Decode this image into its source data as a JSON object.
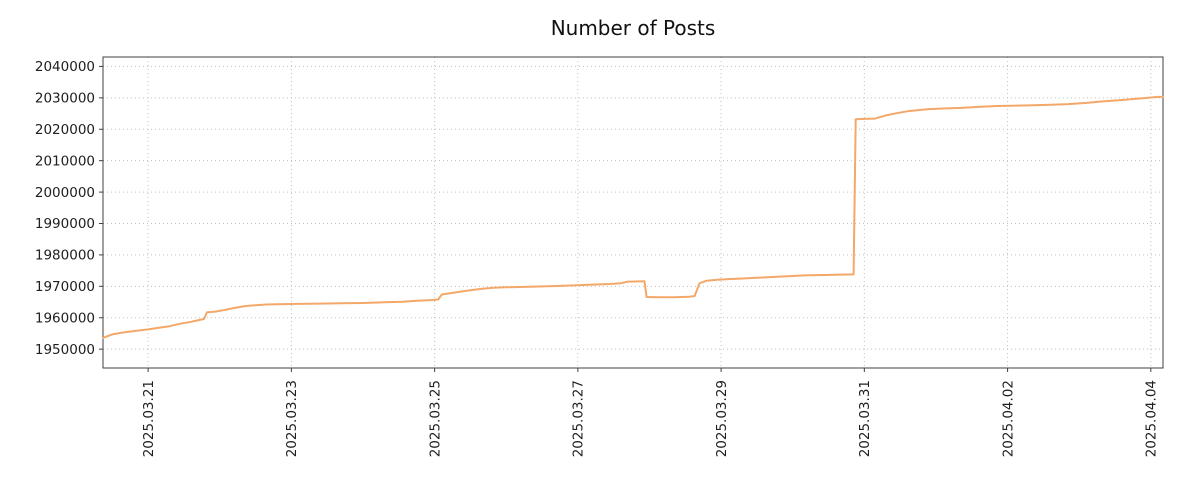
{
  "figure": {
    "title": "Number of Posts"
  },
  "chart_data": {
    "type": "line",
    "title": "Number of Posts",
    "xlabel": "",
    "ylabel": "",
    "x_axis_note": "x values are days, day 1 = 2025.03.21, day 15 = 2025.04.04",
    "xlim": [
      0.37,
      15.17
    ],
    "ylim": [
      1944000,
      2043000
    ],
    "grid": true,
    "grid_style": "dotted",
    "legend": "none",
    "x_ticks": [
      {
        "pos": 1,
        "label": "2025.03.21"
      },
      {
        "pos": 3,
        "label": "2025.03.23"
      },
      {
        "pos": 5,
        "label": "2025.03.25"
      },
      {
        "pos": 7,
        "label": "2025.03.27"
      },
      {
        "pos": 9,
        "label": "2025.03.29"
      },
      {
        "pos": 11,
        "label": "2025.03.31"
      },
      {
        "pos": 13,
        "label": "2025.04.02"
      },
      {
        "pos": 15,
        "label": "2025.04.04"
      }
    ],
    "y_ticks": [
      1950000,
      1960000,
      1970000,
      1980000,
      1990000,
      2000000,
      2010000,
      2020000,
      2030000,
      2040000
    ],
    "colors": {
      "line": "#f3a869",
      "grid": "#c0c0c0",
      "border": "#404040",
      "text": "#202020",
      "background": "#ffffff"
    },
    "line_width": 2,
    "series": [
      {
        "name": "posts",
        "color": "#f3a869",
        "points": [
          [
            0.37,
            1953600
          ],
          [
            0.5,
            1954700
          ],
          [
            0.65,
            1955300
          ],
          [
            0.85,
            1955900
          ],
          [
            1.0,
            1956300
          ],
          [
            1.15,
            1956800
          ],
          [
            1.3,
            1957300
          ],
          [
            1.45,
            1958100
          ],
          [
            1.6,
            1958700
          ],
          [
            1.72,
            1959300
          ],
          [
            1.78,
            1959600
          ],
          [
            1.82,
            1961700
          ],
          [
            1.95,
            1962000
          ],
          [
            2.05,
            1962400
          ],
          [
            2.2,
            1963100
          ],
          [
            2.35,
            1963700
          ],
          [
            2.5,
            1964000
          ],
          [
            2.65,
            1964200
          ],
          [
            2.8,
            1964300
          ],
          [
            3.1,
            1964400
          ],
          [
            3.4,
            1964500
          ],
          [
            3.7,
            1964600
          ],
          [
            4.0,
            1964700
          ],
          [
            4.3,
            1964900
          ],
          [
            4.55,
            1965100
          ],
          [
            4.75,
            1965400
          ],
          [
            4.95,
            1965600
          ],
          [
            5.05,
            1965800
          ],
          [
            5.1,
            1967400
          ],
          [
            5.25,
            1967900
          ],
          [
            5.4,
            1968400
          ],
          [
            5.55,
            1968900
          ],
          [
            5.7,
            1969300
          ],
          [
            5.85,
            1969600
          ],
          [
            6.0,
            1969700
          ],
          [
            6.2,
            1969800
          ],
          [
            6.45,
            1969950
          ],
          [
            6.7,
            1970100
          ],
          [
            6.95,
            1970300
          ],
          [
            7.2,
            1970550
          ],
          [
            7.45,
            1970750
          ],
          [
            7.6,
            1971000
          ],
          [
            7.7,
            1971500
          ],
          [
            7.93,
            1971600
          ],
          [
            7.96,
            1966600
          ],
          [
            8.15,
            1966500
          ],
          [
            8.35,
            1966500
          ],
          [
            8.55,
            1966700
          ],
          [
            8.63,
            1966900
          ],
          [
            8.7,
            1971000
          ],
          [
            8.8,
            1971800
          ],
          [
            8.95,
            1972100
          ],
          [
            9.1,
            1972300
          ],
          [
            9.3,
            1972500
          ],
          [
            9.5,
            1972700
          ],
          [
            9.75,
            1973000
          ],
          [
            10.0,
            1973300
          ],
          [
            10.2,
            1973500
          ],
          [
            10.45,
            1973600
          ],
          [
            10.6,
            1973700
          ],
          [
            10.85,
            1973800
          ],
          [
            10.88,
            2023200
          ],
          [
            11.0,
            2023300
          ],
          [
            11.15,
            2023400
          ],
          [
            11.3,
            2024400
          ],
          [
            11.45,
            2025100
          ],
          [
            11.6,
            2025700
          ],
          [
            11.75,
            2026100
          ],
          [
            11.9,
            2026400
          ],
          [
            12.1,
            2026600
          ],
          [
            12.35,
            2026800
          ],
          [
            12.6,
            2027100
          ],
          [
            12.85,
            2027400
          ],
          [
            13.05,
            2027500
          ],
          [
            13.3,
            2027600
          ],
          [
            13.6,
            2027800
          ],
          [
            13.85,
            2028000
          ],
          [
            14.1,
            2028400
          ],
          [
            14.35,
            2028900
          ],
          [
            14.6,
            2029300
          ],
          [
            14.8,
            2029700
          ],
          [
            15.0,
            2030100
          ],
          [
            15.1,
            2030300
          ],
          [
            15.17,
            2030300
          ]
        ]
      }
    ]
  }
}
